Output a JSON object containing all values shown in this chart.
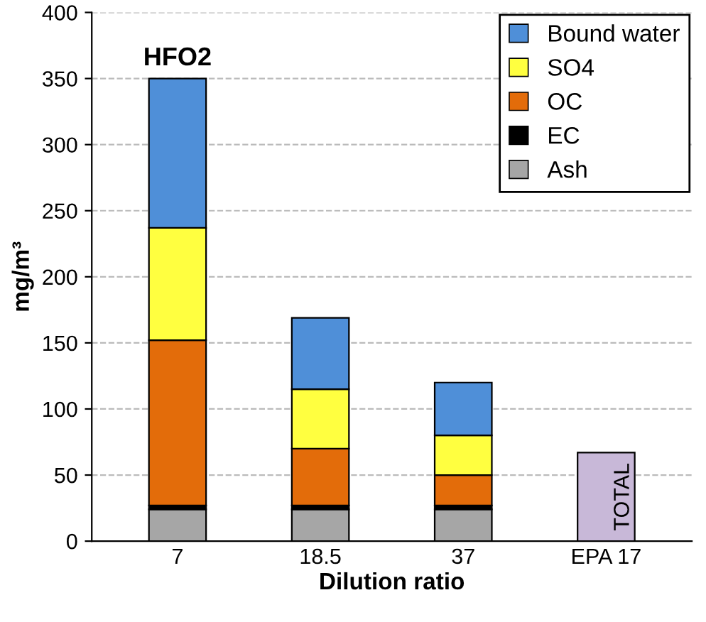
{
  "chart_data": {
    "type": "bar",
    "stacked": true,
    "xlabel": "Dilution ratio",
    "ylabel": "mg/m³",
    "categories": [
      "7",
      "18.5",
      "37",
      "EPA 17"
    ],
    "series": [
      {
        "name": "Ash",
        "color": "#a6a6a6",
        "values": [
          24,
          24,
          24,
          null
        ]
      },
      {
        "name": "EC",
        "color": "#000000",
        "values": [
          3,
          3,
          3,
          null
        ]
      },
      {
        "name": "OC",
        "color": "#e36c0a",
        "values": [
          125,
          43,
          23,
          null
        ]
      },
      {
        "name": "SO4",
        "color": "#ffff40",
        "values": [
          85,
          45,
          30,
          null
        ]
      },
      {
        "name": "Bound water",
        "color": "#4f8fd8",
        "values": [
          113,
          54,
          40,
          null
        ]
      },
      {
        "name": "TOTAL",
        "color": "#c8b8d8",
        "values": [
          null,
          null,
          null,
          67
        ]
      }
    ],
    "annotations": [
      {
        "text": "HFO2",
        "x": "7",
        "y": 350
      }
    ],
    "ylim": [
      0,
      400
    ],
    "yticks": [
      0,
      50,
      100,
      150,
      200,
      250,
      300,
      350,
      400
    ],
    "grid": "y",
    "legend": "top right"
  }
}
